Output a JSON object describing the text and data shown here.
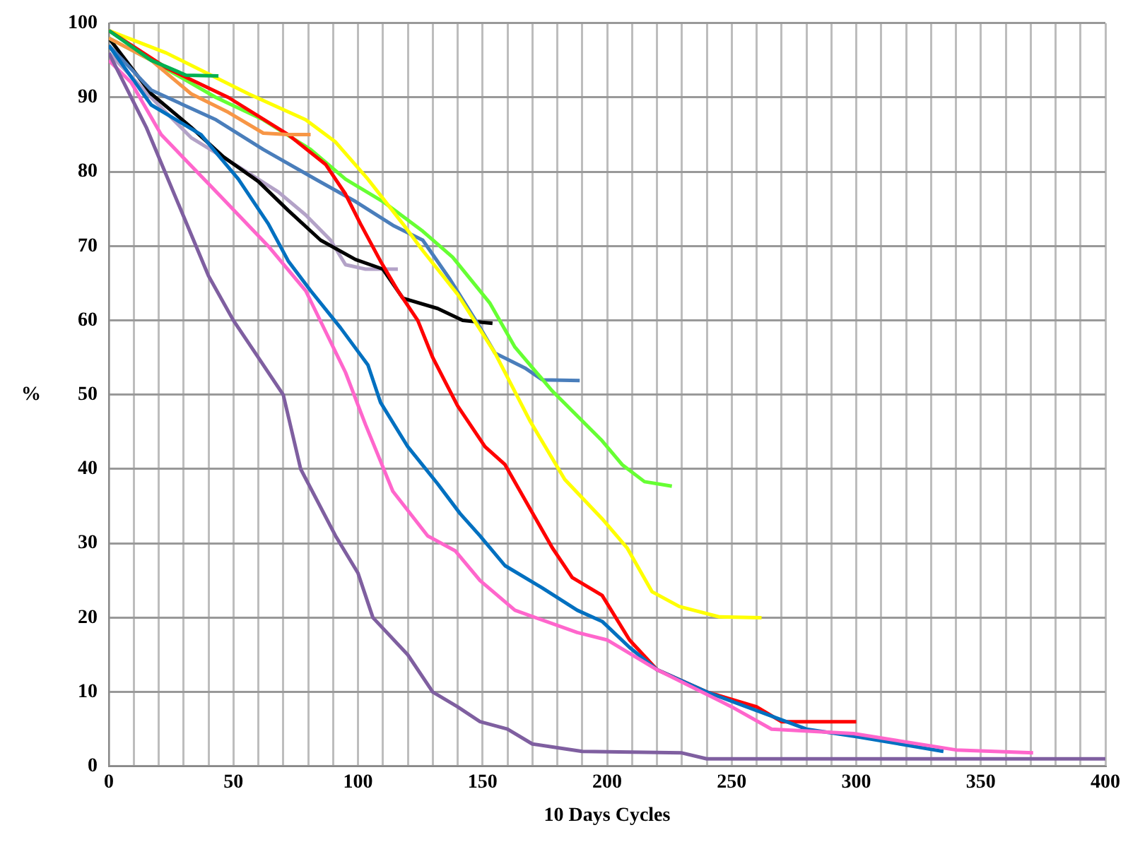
{
  "chart_data": {
    "type": "line",
    "xlabel": "10 Days Cycles",
    "ylabel": "%",
    "xlim": [
      0,
      400
    ],
    "ylim": [
      0,
      100
    ],
    "xticks": [
      0,
      {
        "value": 10,
        "label": null
      },
      {
        "value": 20,
        "label": null
      },
      {
        "value": 30,
        "label": null
      },
      {
        "value": 40,
        "label": null
      },
      50,
      {
        "value": 60,
        "label": null
      },
      {
        "value": 70,
        "label": null
      },
      {
        "value": 80,
        "label": null
      },
      {
        "value": 90,
        "label": null
      },
      100,
      {
        "value": 110,
        "label": null
      },
      {
        "value": 120,
        "label": null
      },
      {
        "value": 130,
        "label": null
      },
      {
        "value": 140,
        "label": null
      },
      150,
      {
        "value": 160,
        "label": null
      },
      {
        "value": 170,
        "label": null
      },
      {
        "value": 180,
        "label": null
      },
      {
        "value": 190,
        "label": null
      },
      200,
      {
        "value": 210,
        "label": null
      },
      {
        "value": 220,
        "label": null
      },
      {
        "value": 230,
        "label": null
      },
      {
        "value": 240,
        "label": null
      },
      250,
      {
        "value": 260,
        "label": null
      },
      {
        "value": 270,
        "label": null
      },
      {
        "value": 280,
        "label": null
      },
      {
        "value": 290,
        "label": null
      },
      300,
      {
        "value": 310,
        "label": null
      },
      {
        "value": 320,
        "label": null
      },
      {
        "value": 330,
        "label": null
      },
      {
        "value": 340,
        "label": null
      },
      350,
      {
        "value": 360,
        "label": null
      },
      {
        "value": 370,
        "label": null
      },
      {
        "value": 380,
        "label": null
      },
      {
        "value": 390,
        "label": null
      },
      400
    ],
    "yticks": [
      0,
      10,
      20,
      30,
      40,
      50,
      60,
      70,
      80,
      90,
      100
    ],
    "grid": true,
    "legend": false,
    "marker": "none",
    "line_style": "solid",
    "series": [
      {
        "color": "#00b050",
        "x": [
          0,
          17,
          31,
          44
        ],
        "values": [
          99,
          95,
          93,
          92.9
        ]
      },
      {
        "color": "#f79646",
        "x": [
          0,
          17,
          33,
          48,
          62,
          72,
          81
        ],
        "values": [
          98,
          95,
          90.5,
          88,
          85.2,
          85,
          85
        ]
      },
      {
        "color": "#7f5fa0",
        "x": [
          0,
          15,
          30,
          40,
          50,
          60,
          70,
          77,
          91,
          100,
          106,
          120,
          130,
          140,
          149,
          160,
          170,
          180,
          190,
          230,
          240,
          400
        ],
        "values": [
          96,
          86,
          74,
          66,
          60,
          55,
          50,
          40,
          31,
          26,
          20,
          15,
          10,
          8,
          6,
          5,
          3,
          2.5,
          2,
          1.8,
          1,
          1
        ]
      },
      {
        "color": "#ff66cc",
        "x": [
          0,
          9,
          21,
          44,
          64,
          79,
          95,
          103,
          114,
          128,
          139,
          149,
          163,
          188,
          200,
          220,
          250,
          266,
          299,
          340,
          371
        ],
        "values": [
          95,
          92,
          85,
          77,
          70,
          64,
          53,
          46,
          37,
          31,
          29,
          25,
          21,
          18,
          17,
          13,
          8,
          5,
          4.4,
          2.2,
          1.8
        ]
      },
      {
        "color": "#0070c0",
        "x": [
          0,
          17,
          37,
          52,
          64,
          72,
          81,
          93,
          104,
          109,
          120,
          132,
          141,
          149,
          159,
          174,
          188,
          198,
          209,
          220,
          240,
          260,
          280,
          300,
          335
        ],
        "values": [
          97,
          89,
          85,
          79,
          73,
          68,
          64,
          59,
          54,
          49,
          43,
          38,
          34,
          31,
          27,
          24,
          21,
          19.5,
          16,
          13,
          10,
          7.5,
          5,
          4,
          2
        ]
      },
      {
        "color": "#ff0000",
        "x": [
          0,
          23,
          48,
          72,
          87,
          95,
          101,
          109,
          116,
          124,
          130,
          140,
          151,
          159,
          169,
          178,
          186,
          198,
          209,
          220,
          240,
          260,
          270,
          300
        ],
        "values": [
          99,
          94,
          90,
          85,
          81,
          77,
          73,
          68,
          64,
          60,
          55,
          48.5,
          43,
          40.6,
          34.7,
          29.4,
          25.4,
          23,
          17,
          13,
          10,
          8,
          6,
          6
        ]
      },
      {
        "color": "#ffff00",
        "x": [
          0,
          23,
          56,
          79,
          91,
          104,
          118,
          126,
          140,
          155,
          169,
          183,
          198,
          208,
          218,
          229,
          245,
          262
        ],
        "values": [
          99,
          96,
          90.5,
          87,
          84,
          79,
          73,
          69.4,
          63.5,
          55.6,
          46.5,
          38.6,
          33.3,
          29.4,
          23.5,
          21.5,
          20.1,
          20
        ]
      },
      {
        "color": "#66ff33",
        "x": [
          0,
          17,
          43,
          62,
          81,
          95,
          110,
          126,
          138,
          153,
          163,
          178,
          198,
          206,
          215,
          226
        ],
        "values": [
          98,
          95,
          90,
          87,
          83,
          79,
          76,
          72,
          68.5,
          62.3,
          56.4,
          50.5,
          43.8,
          40.6,
          38.3,
          37.7
        ]
      },
      {
        "color": "#4a7ebb",
        "x": [
          0,
          17,
          43,
          62,
          83,
          99,
          114,
          126,
          137,
          148,
          155,
          167,
          174,
          189
        ],
        "values": [
          97,
          91,
          87,
          83,
          79,
          76,
          72.8,
          70.8,
          65.5,
          59.6,
          55.6,
          53.6,
          52,
          51.9
        ]
      },
      {
        "color": "#000000",
        "x": [
          0,
          17,
          33,
          46,
          60,
          72,
          85,
          99,
          110,
          118,
          132,
          142,
          154
        ],
        "values": [
          98,
          90.5,
          86,
          82,
          78.7,
          74.8,
          70.8,
          68.2,
          66.9,
          63,
          61.6,
          60,
          59.6
        ]
      },
      {
        "color": "#b3a2c7",
        "x": [
          0,
          17,
          33,
          52,
          68,
          79,
          89,
          95,
          103,
          116
        ],
        "values": [
          96,
          90,
          84.6,
          80.7,
          77.3,
          74.2,
          70.8,
          67.5,
          66.9,
          66.9
        ]
      }
    ]
  }
}
